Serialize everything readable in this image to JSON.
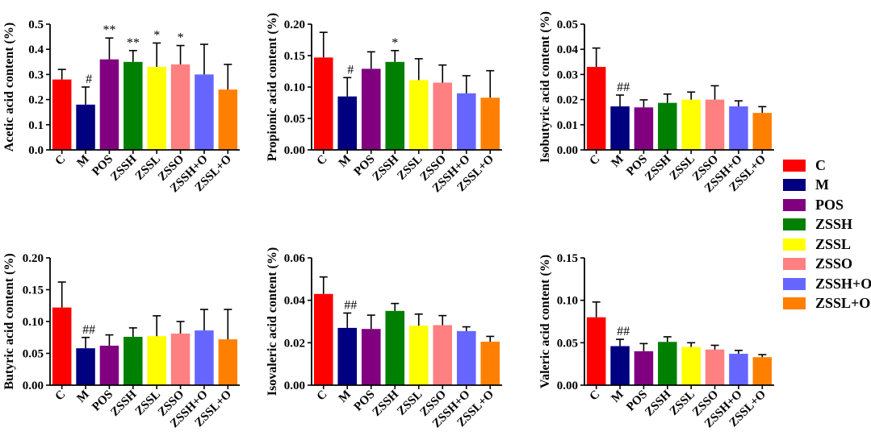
{
  "groups": [
    "C",
    "M",
    "POS",
    "ZSSH",
    "ZSSL",
    "ZSSO",
    "ZSSH+O",
    "ZSSL+O"
  ],
  "colors": [
    "#ff0000",
    "#000080",
    "#800080",
    "#008000",
    "#ffff00",
    "#ff8080",
    "#6666ff",
    "#ff8000"
  ],
  "chart_data": [
    {
      "type": "bar",
      "ylabel": "Acetic acid content (%)",
      "ylim": [
        0,
        0.5
      ],
      "yticks": [
        "0.0",
        "0.1",
        "0.2",
        "0.3",
        "0.4",
        "0.5"
      ],
      "categories": [
        "C",
        "M",
        "POS",
        "ZSSH",
        "ZSSL",
        "ZSSO",
        "ZSSH+O",
        "ZSSL+O"
      ],
      "values": [
        0.28,
        0.18,
        0.36,
        0.35,
        0.33,
        0.34,
        0.3,
        0.24
      ],
      "errors": [
        0.04,
        0.07,
        0.085,
        0.045,
        0.095,
        0.075,
        0.12,
        0.1
      ],
      "annotations": [
        "",
        "#",
        "**",
        "**",
        "*",
        "*",
        "",
        ""
      ]
    },
    {
      "type": "bar",
      "ylabel": "Propionic acid content (%)",
      "ylim": [
        0,
        0.2
      ],
      "yticks": [
        "0.00",
        "0.05",
        "0.10",
        "0.15",
        "0.20"
      ],
      "categories": [
        "C",
        "M",
        "POS",
        "ZSSH",
        "ZSSL",
        "ZSSO",
        "ZSSH+O",
        "ZSSL+O"
      ],
      "values": [
        0.147,
        0.085,
        0.129,
        0.14,
        0.111,
        0.107,
        0.09,
        0.083
      ],
      "errors": [
        0.04,
        0.03,
        0.027,
        0.018,
        0.034,
        0.028,
        0.028,
        0.043
      ],
      "annotations": [
        "",
        "#",
        "",
        "*",
        "",
        "",
        "",
        ""
      ]
    },
    {
      "type": "bar",
      "ylabel": "Isobutyric acid content (%)",
      "ylim": [
        0,
        0.05
      ],
      "yticks": [
        "0.00",
        "0.01",
        "0.02",
        "0.03",
        "0.04",
        "0.05"
      ],
      "categories": [
        "C",
        "M",
        "POS",
        "ZSSH",
        "ZSSL",
        "ZSSO",
        "ZSSH+O",
        "ZSSL+O"
      ],
      "values": [
        0.033,
        0.0173,
        0.0169,
        0.0187,
        0.02,
        0.02,
        0.0173,
        0.0147
      ],
      "errors": [
        0.0075,
        0.0045,
        0.003,
        0.0035,
        0.003,
        0.0055,
        0.0022,
        0.0025
      ],
      "annotations": [
        "",
        "##",
        "",
        "",
        "",
        "",
        "",
        ""
      ]
    },
    {
      "type": "bar",
      "ylabel": "Butyric acid content (%)",
      "ylim": [
        0,
        0.2
      ],
      "yticks": [
        "0.00",
        "0.05",
        "0.10",
        "0.15",
        "0.20"
      ],
      "categories": [
        "C",
        "M",
        "POS",
        "ZSSH",
        "ZSSL",
        "ZSSO",
        "ZSSH+O",
        "ZSSL+O"
      ],
      "values": [
        0.122,
        0.058,
        0.062,
        0.076,
        0.077,
        0.081,
        0.086,
        0.072
      ],
      "errors": [
        0.04,
        0.017,
        0.017,
        0.014,
        0.032,
        0.019,
        0.033,
        0.047
      ],
      "annotations": [
        "",
        "##",
        "",
        "",
        "",
        "",
        "",
        ""
      ]
    },
    {
      "type": "bar",
      "ylabel": "Isovaleric acid content (%)",
      "ylim": [
        0,
        0.06
      ],
      "yticks": [
        "0.00",
        "0.02",
        "0.04",
        "0.06"
      ],
      "categories": [
        "C",
        "M",
        "POS",
        "ZSSH",
        "ZSSL",
        "ZSSO",
        "ZSSH+O",
        "ZSSL+O"
      ],
      "values": [
        0.043,
        0.027,
        0.0265,
        0.035,
        0.028,
        0.0283,
        0.0255,
        0.0205
      ],
      "errors": [
        0.008,
        0.007,
        0.0065,
        0.0035,
        0.0055,
        0.0045,
        0.002,
        0.0025
      ],
      "annotations": [
        "",
        "##",
        "",
        "",
        "",
        "",
        "",
        ""
      ]
    },
    {
      "type": "bar",
      "ylabel": "Valeric acid content (%)",
      "ylim": [
        0,
        0.15
      ],
      "yticks": [
        "0.00",
        "0.05",
        "0.10",
        "0.15"
      ],
      "categories": [
        "C",
        "M",
        "POS",
        "ZSSH",
        "ZSSL",
        "ZSSO",
        "ZSSH+O",
        "ZSSL+O"
      ],
      "values": [
        0.08,
        0.046,
        0.04,
        0.051,
        0.045,
        0.042,
        0.037,
        0.033
      ],
      "errors": [
        0.018,
        0.008,
        0.009,
        0.006,
        0.005,
        0.005,
        0.004,
        0.003
      ],
      "annotations": [
        "",
        "##",
        "",
        "",
        "",
        "",
        "",
        ""
      ]
    }
  ],
  "legend": {
    "items": [
      {
        "label": "C",
        "color": "#ff0000"
      },
      {
        "label": "M",
        "color": "#000080"
      },
      {
        "label": "POS",
        "color": "#800080"
      },
      {
        "label": "ZSSH",
        "color": "#008000"
      },
      {
        "label": "ZSSL",
        "color": "#ffff00"
      },
      {
        "label": "ZSSO",
        "color": "#ff8080"
      },
      {
        "label": "ZSSH+O",
        "color": "#6666ff"
      },
      {
        "label": "ZSSL+O",
        "color": "#ff8000"
      }
    ]
  }
}
